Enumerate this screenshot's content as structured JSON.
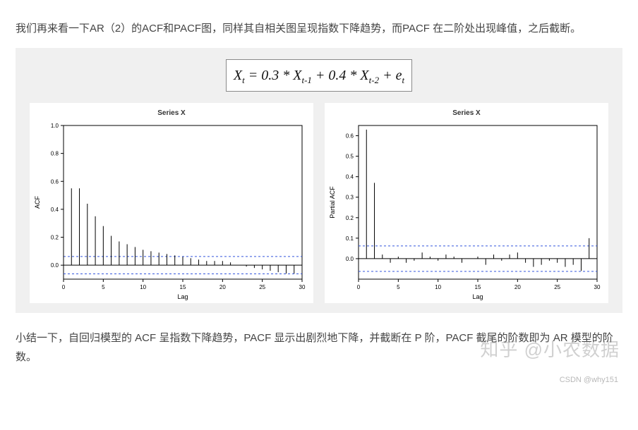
{
  "text": {
    "para1": "我们再来看一下AR（2）的ACF和PACF图，同样其自相关图呈现指数下降趋势，而PACF 在二阶处出现峰值，之后截断。",
    "para2": "小结一下，自回归模型的 ACF 呈指数下降趋势，PACF 显示出剧烈地下降，并截断在 P 阶，PACF 截尾的阶数即为 AR 模型的阶数。",
    "watermark": "知乎 @小农数据",
    "footer": "CSDN @why151"
  },
  "equation": {
    "raw": "X_t = 0.3 * X_{t-1} + 0.4 * X_{t-2} + e_t"
  },
  "colors": {
    "page_bg": "#ffffff",
    "figure_bg": "#f0f0f0",
    "panel_bg": "#ffffff",
    "axis": "#000000",
    "bar": "#000000",
    "ci_line": "#3355dd",
    "text": "#333333",
    "equation_border": "#8a8a8a"
  },
  "acf_chart": {
    "type": "bar-stem",
    "title": "Series X",
    "xlabel": "Lag",
    "ylabel": "ACF",
    "title_fontsize": 10,
    "label_fontsize": 9,
    "tick_fontsize": 8,
    "xlim": [
      0,
      30
    ],
    "ylim": [
      -0.1,
      1.0
    ],
    "xticks": [
      0,
      5,
      10,
      15,
      20,
      25,
      30
    ],
    "yticks": [
      0.0,
      0.2,
      0.4,
      0.6,
      0.8,
      1.0
    ],
    "ci": 0.062,
    "ci_dash": "3,3",
    "line_width": 1,
    "x": [
      0,
      1,
      2,
      3,
      4,
      5,
      6,
      7,
      8,
      9,
      10,
      11,
      12,
      13,
      14,
      15,
      16,
      17,
      18,
      19,
      20,
      21,
      22,
      23,
      24,
      25,
      26,
      27,
      28,
      29,
      30
    ],
    "y": [
      1.0,
      0.55,
      0.55,
      0.44,
      0.35,
      0.28,
      0.21,
      0.17,
      0.15,
      0.13,
      0.11,
      0.1,
      0.09,
      0.08,
      0.07,
      0.06,
      0.05,
      0.04,
      0.03,
      0.03,
      0.03,
      0.02,
      0.0,
      -0.01,
      -0.02,
      -0.03,
      -0.04,
      -0.05,
      -0.06,
      -0.06,
      -0.05
    ]
  },
  "pacf_chart": {
    "type": "bar-stem",
    "title": "Series X",
    "xlabel": "Lag",
    "ylabel": "Partial ACF",
    "title_fontsize": 10,
    "label_fontsize": 9,
    "tick_fontsize": 8,
    "xlim": [
      0,
      30
    ],
    "ylim": [
      -0.1,
      0.65
    ],
    "xticks": [
      0,
      5,
      10,
      15,
      20,
      25,
      30
    ],
    "yticks": [
      0.0,
      0.1,
      0.2,
      0.3,
      0.4,
      0.5,
      0.6
    ],
    "ci": 0.062,
    "ci_dash": "3,3",
    "line_width": 1,
    "x": [
      1,
      2,
      3,
      4,
      5,
      6,
      7,
      8,
      9,
      10,
      11,
      12,
      13,
      14,
      15,
      16,
      17,
      18,
      19,
      20,
      21,
      22,
      23,
      24,
      25,
      26,
      27,
      28,
      29,
      30
    ],
    "y": [
      0.63,
      0.37,
      0.02,
      -0.02,
      0.01,
      -0.02,
      -0.01,
      0.03,
      0.01,
      -0.01,
      0.02,
      0.01,
      -0.02,
      0.0,
      0.01,
      -0.03,
      0.02,
      -0.01,
      0.02,
      0.03,
      -0.02,
      -0.04,
      -0.03,
      -0.01,
      -0.02,
      -0.04,
      -0.03,
      -0.06,
      0.1,
      -0.02
    ]
  }
}
